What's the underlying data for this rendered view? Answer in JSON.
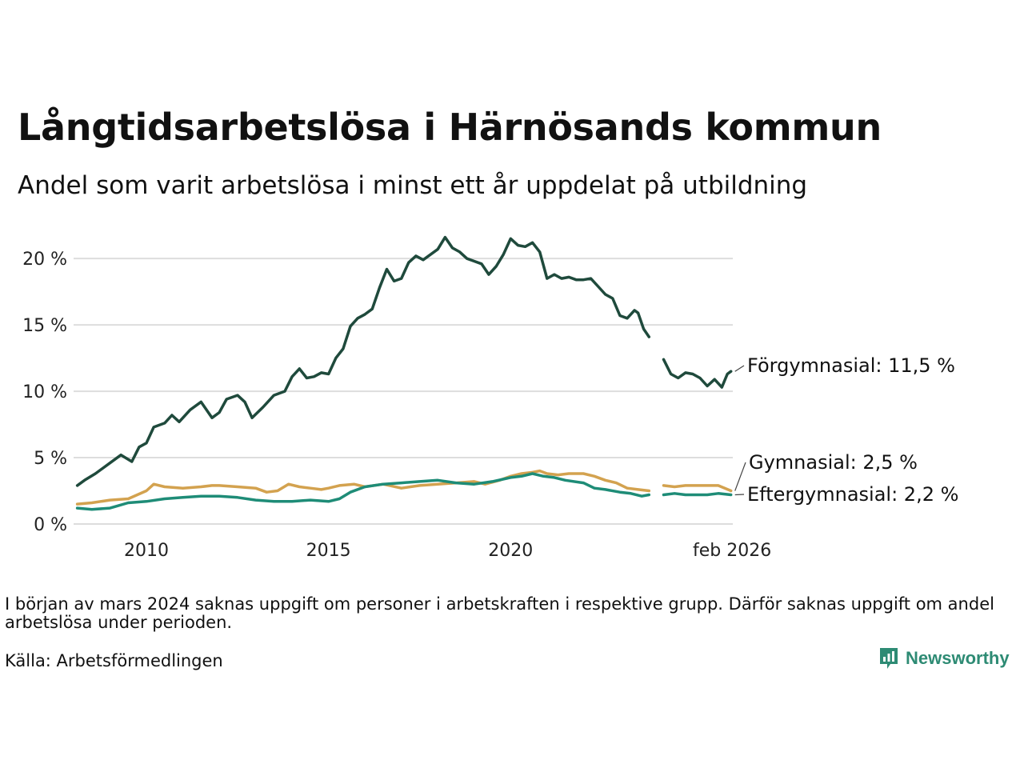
{
  "header": {
    "title": "Långtidsarbetslösa i Härnösands kommun",
    "subtitle": "Andel som varit arbetslösa i minst ett år uppdelat på utbildning"
  },
  "footer": {
    "note": "I början av mars 2024 saknas uppgift om personer i arbetskraften i respektive grupp. Därför saknas uppgift om andel arbetslösa under perioden.",
    "source": "Källa: Arbetsförmedlingen",
    "brand": "Newsworthy"
  },
  "colors": {
    "forgymnasial": "#1f4a3c",
    "gymnasial": "#d3a24f",
    "eftergymnasial": "#1e8c77",
    "grid": "#dddddd",
    "brand": "#2e8b74"
  },
  "chart_data": {
    "type": "line",
    "title": "Långtidsarbetslösa i Härnösands kommun",
    "subtitle": "Andel som varit arbetslösa i minst ett år uppdelat på utbildning",
    "x_unit": "decimal year",
    "xlim": [
      2008.0,
      2026.1
    ],
    "ylim": [
      0,
      22
    ],
    "y_ticks": [
      {
        "value": 0,
        "label": "0 %"
      },
      {
        "value": 5,
        "label": "5 %"
      },
      {
        "value": 10,
        "label": "10 %"
      },
      {
        "value": 15,
        "label": "15 %"
      },
      {
        "value": 20,
        "label": "20 %"
      }
    ],
    "x_ticks": [
      {
        "value": 2010,
        "label": "2010"
      },
      {
        "value": 2015,
        "label": "2015"
      },
      {
        "value": 2020,
        "label": "2020"
      },
      {
        "value": 2026.08,
        "label": "feb 2026"
      }
    ],
    "grid": true,
    "gap": {
      "from": 2023.85,
      "to": 2024.2
    },
    "series": [
      {
        "name": "Förgymnasial",
        "end_label": "Förgymnasial: 11,5 %",
        "color_key": "forgymnasial",
        "points": [
          [
            2008.1,
            2.9
          ],
          [
            2008.3,
            3.3
          ],
          [
            2008.6,
            3.8
          ],
          [
            2009.0,
            4.6
          ],
          [
            2009.3,
            5.2
          ],
          [
            2009.6,
            4.7
          ],
          [
            2009.8,
            5.8
          ],
          [
            2010.0,
            6.1
          ],
          [
            2010.2,
            7.3
          ],
          [
            2010.5,
            7.6
          ],
          [
            2010.7,
            8.2
          ],
          [
            2010.9,
            7.7
          ],
          [
            2011.2,
            8.6
          ],
          [
            2011.5,
            9.2
          ],
          [
            2011.8,
            8.0
          ],
          [
            2012.0,
            8.4
          ],
          [
            2012.2,
            9.4
          ],
          [
            2012.5,
            9.7
          ],
          [
            2012.7,
            9.2
          ],
          [
            2012.9,
            8.0
          ],
          [
            2013.2,
            8.8
          ],
          [
            2013.5,
            9.7
          ],
          [
            2013.8,
            10.0
          ],
          [
            2014.0,
            11.1
          ],
          [
            2014.2,
            11.7
          ],
          [
            2014.4,
            11.0
          ],
          [
            2014.6,
            11.1
          ],
          [
            2014.8,
            11.4
          ],
          [
            2015.0,
            11.3
          ],
          [
            2015.2,
            12.5
          ],
          [
            2015.4,
            13.2
          ],
          [
            2015.6,
            14.9
          ],
          [
            2015.8,
            15.5
          ],
          [
            2016.0,
            15.8
          ],
          [
            2016.2,
            16.2
          ],
          [
            2016.4,
            17.8
          ],
          [
            2016.6,
            19.2
          ],
          [
            2016.8,
            18.3
          ],
          [
            2017.0,
            18.5
          ],
          [
            2017.2,
            19.7
          ],
          [
            2017.4,
            20.2
          ],
          [
            2017.6,
            19.9
          ],
          [
            2017.8,
            20.3
          ],
          [
            2018.0,
            20.7
          ],
          [
            2018.2,
            21.6
          ],
          [
            2018.4,
            20.8
          ],
          [
            2018.6,
            20.5
          ],
          [
            2018.8,
            20.0
          ],
          [
            2019.0,
            19.8
          ],
          [
            2019.2,
            19.6
          ],
          [
            2019.4,
            18.8
          ],
          [
            2019.6,
            19.4
          ],
          [
            2019.8,
            20.3
          ],
          [
            2020.0,
            21.5
          ],
          [
            2020.2,
            21.0
          ],
          [
            2020.4,
            20.9
          ],
          [
            2020.6,
            21.2
          ],
          [
            2020.8,
            20.5
          ],
          [
            2021.0,
            18.5
          ],
          [
            2021.2,
            18.8
          ],
          [
            2021.4,
            18.5
          ],
          [
            2021.6,
            18.6
          ],
          [
            2021.8,
            18.4
          ],
          [
            2022.0,
            18.4
          ],
          [
            2022.2,
            18.5
          ],
          [
            2022.4,
            17.9
          ],
          [
            2022.6,
            17.3
          ],
          [
            2022.8,
            17.0
          ],
          [
            2023.0,
            15.7
          ],
          [
            2023.2,
            15.5
          ],
          [
            2023.4,
            16.1
          ],
          [
            2023.5,
            15.9
          ],
          [
            2023.65,
            14.7
          ],
          [
            2023.8,
            14.1
          ],
          null,
          [
            2024.2,
            12.4
          ],
          [
            2024.4,
            11.3
          ],
          [
            2024.6,
            11.0
          ],
          [
            2024.8,
            11.4
          ],
          [
            2025.0,
            11.3
          ],
          [
            2025.2,
            11.0
          ],
          [
            2025.4,
            10.4
          ],
          [
            2025.6,
            10.9
          ],
          [
            2025.8,
            10.3
          ],
          [
            2025.95,
            11.3
          ],
          [
            2026.05,
            11.5
          ]
        ]
      },
      {
        "name": "Gymnasial",
        "end_label": "Gymnasial:  2,5 %",
        "color_key": "gymnasial",
        "points": [
          [
            2008.1,
            1.5
          ],
          [
            2008.5,
            1.6
          ],
          [
            2009.0,
            1.8
          ],
          [
            2009.5,
            1.9
          ],
          [
            2010.0,
            2.5
          ],
          [
            2010.2,
            3.0
          ],
          [
            2010.5,
            2.8
          ],
          [
            2011.0,
            2.7
          ],
          [
            2011.5,
            2.8
          ],
          [
            2011.8,
            2.9
          ],
          [
            2012.0,
            2.9
          ],
          [
            2012.5,
            2.8
          ],
          [
            2013.0,
            2.7
          ],
          [
            2013.3,
            2.4
          ],
          [
            2013.6,
            2.5
          ],
          [
            2013.9,
            3.0
          ],
          [
            2014.2,
            2.8
          ],
          [
            2014.5,
            2.7
          ],
          [
            2014.8,
            2.6
          ],
          [
            2015.0,
            2.7
          ],
          [
            2015.3,
            2.9
          ],
          [
            2015.7,
            3.0
          ],
          [
            2016.0,
            2.8
          ],
          [
            2016.5,
            3.0
          ],
          [
            2017.0,
            2.7
          ],
          [
            2017.5,
            2.9
          ],
          [
            2018.0,
            3.0
          ],
          [
            2018.5,
            3.1
          ],
          [
            2019.0,
            3.2
          ],
          [
            2019.3,
            3.0
          ],
          [
            2019.7,
            3.3
          ],
          [
            2020.0,
            3.6
          ],
          [
            2020.3,
            3.8
          ],
          [
            2020.6,
            3.9
          ],
          [
            2020.8,
            4.0
          ],
          [
            2021.0,
            3.8
          ],
          [
            2021.3,
            3.7
          ],
          [
            2021.6,
            3.8
          ],
          [
            2022.0,
            3.8
          ],
          [
            2022.3,
            3.6
          ],
          [
            2022.6,
            3.3
          ],
          [
            2022.9,
            3.1
          ],
          [
            2023.2,
            2.7
          ],
          [
            2023.5,
            2.6
          ],
          [
            2023.8,
            2.5
          ],
          null,
          [
            2024.2,
            2.9
          ],
          [
            2024.5,
            2.8
          ],
          [
            2024.8,
            2.9
          ],
          [
            2025.1,
            2.9
          ],
          [
            2025.4,
            2.9
          ],
          [
            2025.7,
            2.9
          ],
          [
            2026.05,
            2.5
          ]
        ]
      },
      {
        "name": "Eftergymnasial",
        "end_label": "Eftergymnasial:  2,2 %",
        "color_key": "eftergymnasial",
        "points": [
          [
            2008.1,
            1.2
          ],
          [
            2008.5,
            1.1
          ],
          [
            2009.0,
            1.2
          ],
          [
            2009.5,
            1.6
          ],
          [
            2010.0,
            1.7
          ],
          [
            2010.5,
            1.9
          ],
          [
            2011.0,
            2.0
          ],
          [
            2011.5,
            2.1
          ],
          [
            2012.0,
            2.1
          ],
          [
            2012.5,
            2.0
          ],
          [
            2013.0,
            1.8
          ],
          [
            2013.5,
            1.7
          ],
          [
            2014.0,
            1.7
          ],
          [
            2014.5,
            1.8
          ],
          [
            2015.0,
            1.7
          ],
          [
            2015.3,
            1.9
          ],
          [
            2015.6,
            2.4
          ],
          [
            2016.0,
            2.8
          ],
          [
            2016.5,
            3.0
          ],
          [
            2017.0,
            3.1
          ],
          [
            2017.5,
            3.2
          ],
          [
            2018.0,
            3.3
          ],
          [
            2018.5,
            3.1
          ],
          [
            2019.0,
            3.0
          ],
          [
            2019.5,
            3.2
          ],
          [
            2020.0,
            3.5
          ],
          [
            2020.3,
            3.6
          ],
          [
            2020.6,
            3.8
          ],
          [
            2020.9,
            3.6
          ],
          [
            2021.2,
            3.5
          ],
          [
            2021.5,
            3.3
          ],
          [
            2022.0,
            3.1
          ],
          [
            2022.3,
            2.7
          ],
          [
            2022.6,
            2.6
          ],
          [
            2023.0,
            2.4
          ],
          [
            2023.3,
            2.3
          ],
          [
            2023.6,
            2.1
          ],
          [
            2023.8,
            2.2
          ],
          null,
          [
            2024.2,
            2.2
          ],
          [
            2024.5,
            2.3
          ],
          [
            2024.8,
            2.2
          ],
          [
            2025.1,
            2.2
          ],
          [
            2025.4,
            2.2
          ],
          [
            2025.7,
            2.3
          ],
          [
            2026.05,
            2.2
          ]
        ]
      }
    ]
  }
}
